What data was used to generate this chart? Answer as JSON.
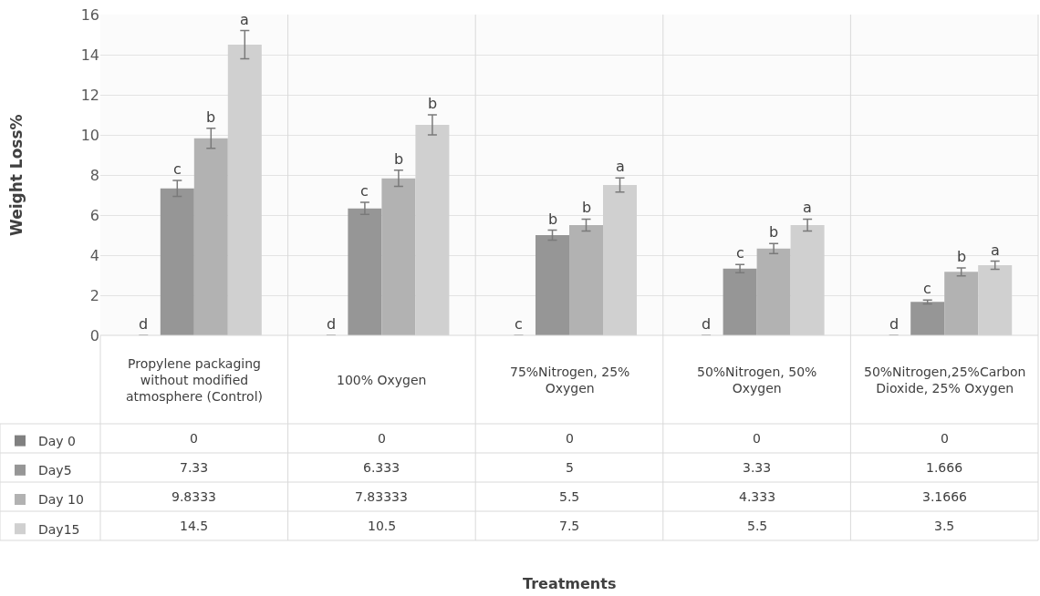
{
  "chart_data": {
    "type": "bar",
    "ylabel": "Weight Loss%",
    "categories": [
      "Propylene packaging without modified atmosphere (Control)",
      "100% Oxygen",
      "75%Nitrogen, 25% Oxygen",
      "50%Nitrogen, 50% Oxygen",
      "50%Nitrogen,25%Carbon Dioxide, 25% Oxygen"
    ],
    "series": [
      {
        "name": "Day 0",
        "color": "#808080",
        "values": [
          0,
          0,
          0,
          0,
          0
        ],
        "errors": [
          null,
          null,
          null,
          null,
          null
        ]
      },
      {
        "name": "Day5",
        "color": "#969696",
        "values": [
          7.33,
          6.333,
          5,
          3.33,
          1.666
        ],
        "errors": [
          0.4,
          0.3,
          0.25,
          0.2,
          0.1
        ]
      },
      {
        "name": "Day 10",
        "color": "#b2b2b2",
        "values": [
          9.8333,
          7.83333,
          5.5,
          4.333,
          3.1666
        ],
        "errors": [
          0.5,
          0.4,
          0.3,
          0.25,
          0.2
        ]
      },
      {
        "name": "Day15",
        "color": "#d0d0d0",
        "values": [
          14.5,
          10.5,
          7.5,
          5.5,
          3.5
        ],
        "errors": [
          0.7,
          0.5,
          0.35,
          0.3,
          0.2
        ]
      }
    ],
    "annotations": [
      "d",
      "c",
      "b",
      "a",
      "d",
      "c",
      "b",
      "b",
      "c",
      "b",
      "b",
      "a",
      "d",
      "c",
      "b",
      "a",
      "d",
      "c",
      "b",
      "a",
      "Treatments"
    ],
    "ylim": [
      0,
      16
    ],
    "yticks": [
      0,
      2,
      4,
      6,
      8,
      10,
      12,
      14,
      16
    ],
    "grid": true,
    "data_labels": true,
    "legend": "bottom left"
  }
}
